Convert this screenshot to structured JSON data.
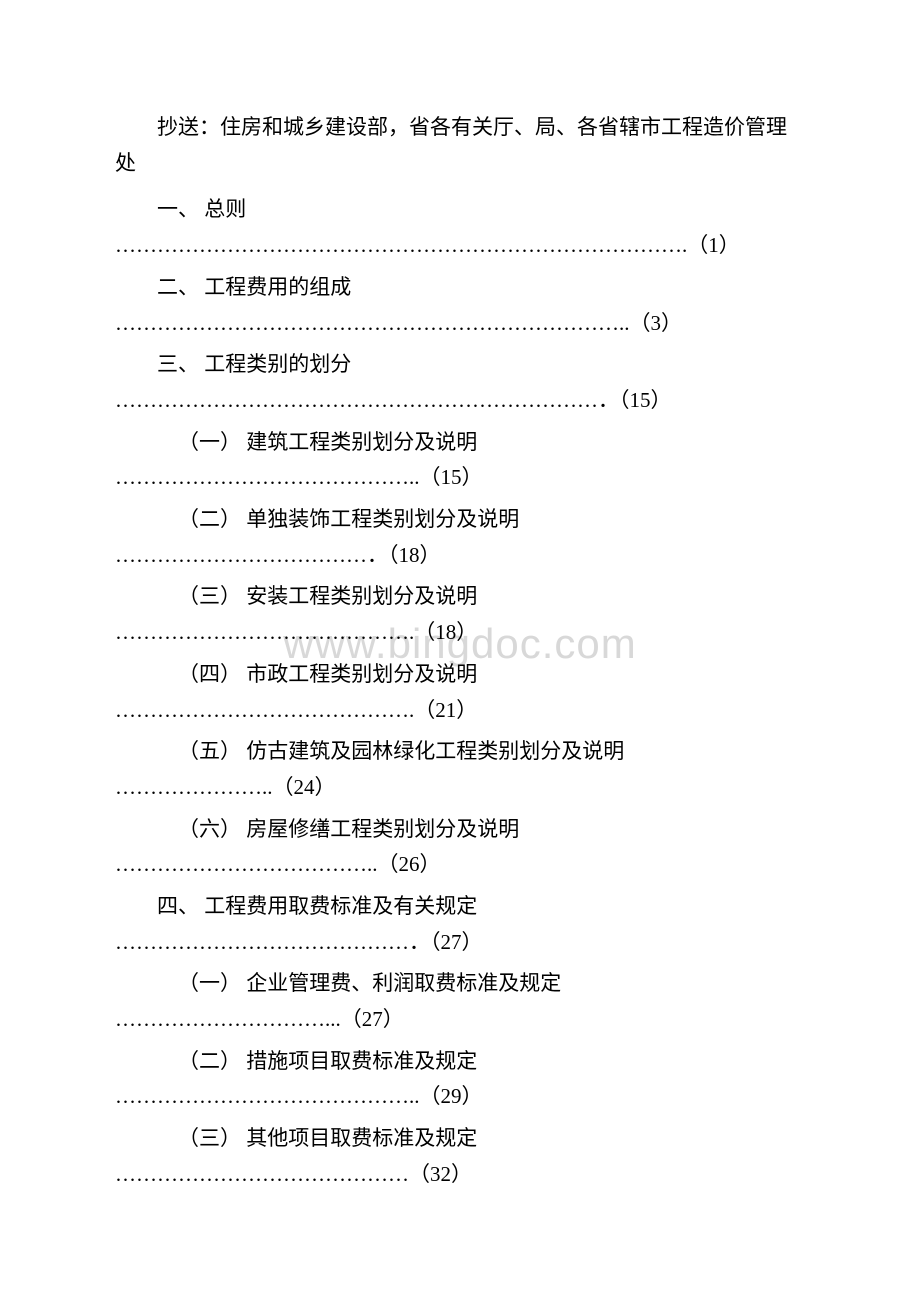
{
  "watermark": "www.bingdoc.com",
  "header": "抄送：住房和城乡建设部，省各有关厅、局、各省辖市工程造价管理处",
  "toc": [
    {
      "level": 1,
      "title": "一、 总则",
      "dots": "……………………………………………………………………….",
      "page": "（1）"
    },
    {
      "level": 1,
      "title": "二、 工程费用的组成",
      "dots": "………………………………………………………………..",
      "page": "（3）"
    },
    {
      "level": 1,
      "title": "三、 工程类别的划分",
      "dots": "……………………………………………………………．",
      "page": "（15）"
    },
    {
      "level": 2,
      "title": "（一） 建筑工程类别划分及说明",
      "dots": "……………………………………..",
      "page": "（15）"
    },
    {
      "level": 2,
      "title": "（二） 单独装饰工程类别划分及说明",
      "dots": "………………………………．",
      "page": "（18）"
    },
    {
      "level": 2,
      "title": "（三） 安装工程类别划分及说明",
      "dots": "…………………………………….",
      "page": "（18）"
    },
    {
      "level": 2,
      "title": "（四） 市政工程类别划分及说明",
      "dots": "…………………………………….",
      "page": "（21）"
    },
    {
      "level": 2,
      "title": "（五） 仿古建筑及园林绿化工程类别划分及说明",
      "dots": "…………………..",
      "page": "（24）"
    },
    {
      "level": 2,
      "title": "（六） 房屋修缮工程类别划分及说明",
      "dots": "………………………………..",
      "page": "（26）"
    },
    {
      "level": 1,
      "title": "四、 工程费用取费标准及有关规定",
      "dots": "……………………………………．",
      "page": "（27）"
    },
    {
      "level": 2,
      "title": "（一） 企业管理费、利润取费标准及规定",
      "dots": "…………………………...",
      "page": "（27）"
    },
    {
      "level": 2,
      "title": "（二） 措施项目取费标准及规定",
      "dots": "……………………………………..",
      "page": "（29）"
    },
    {
      "level": 2,
      "title": "（三） 其他项目取费标准及规定",
      "dots": "……………………………………",
      "page": "（32）"
    }
  ],
  "styles": {
    "bodyWidth": 920,
    "bodyHeight": 1302,
    "fontSize": 21,
    "textColor": "#000000",
    "backgroundColor": "#ffffff",
    "watermarkColor": "#d8d8d8",
    "watermarkFontSize": 42,
    "fontFamily": "SimSun"
  }
}
